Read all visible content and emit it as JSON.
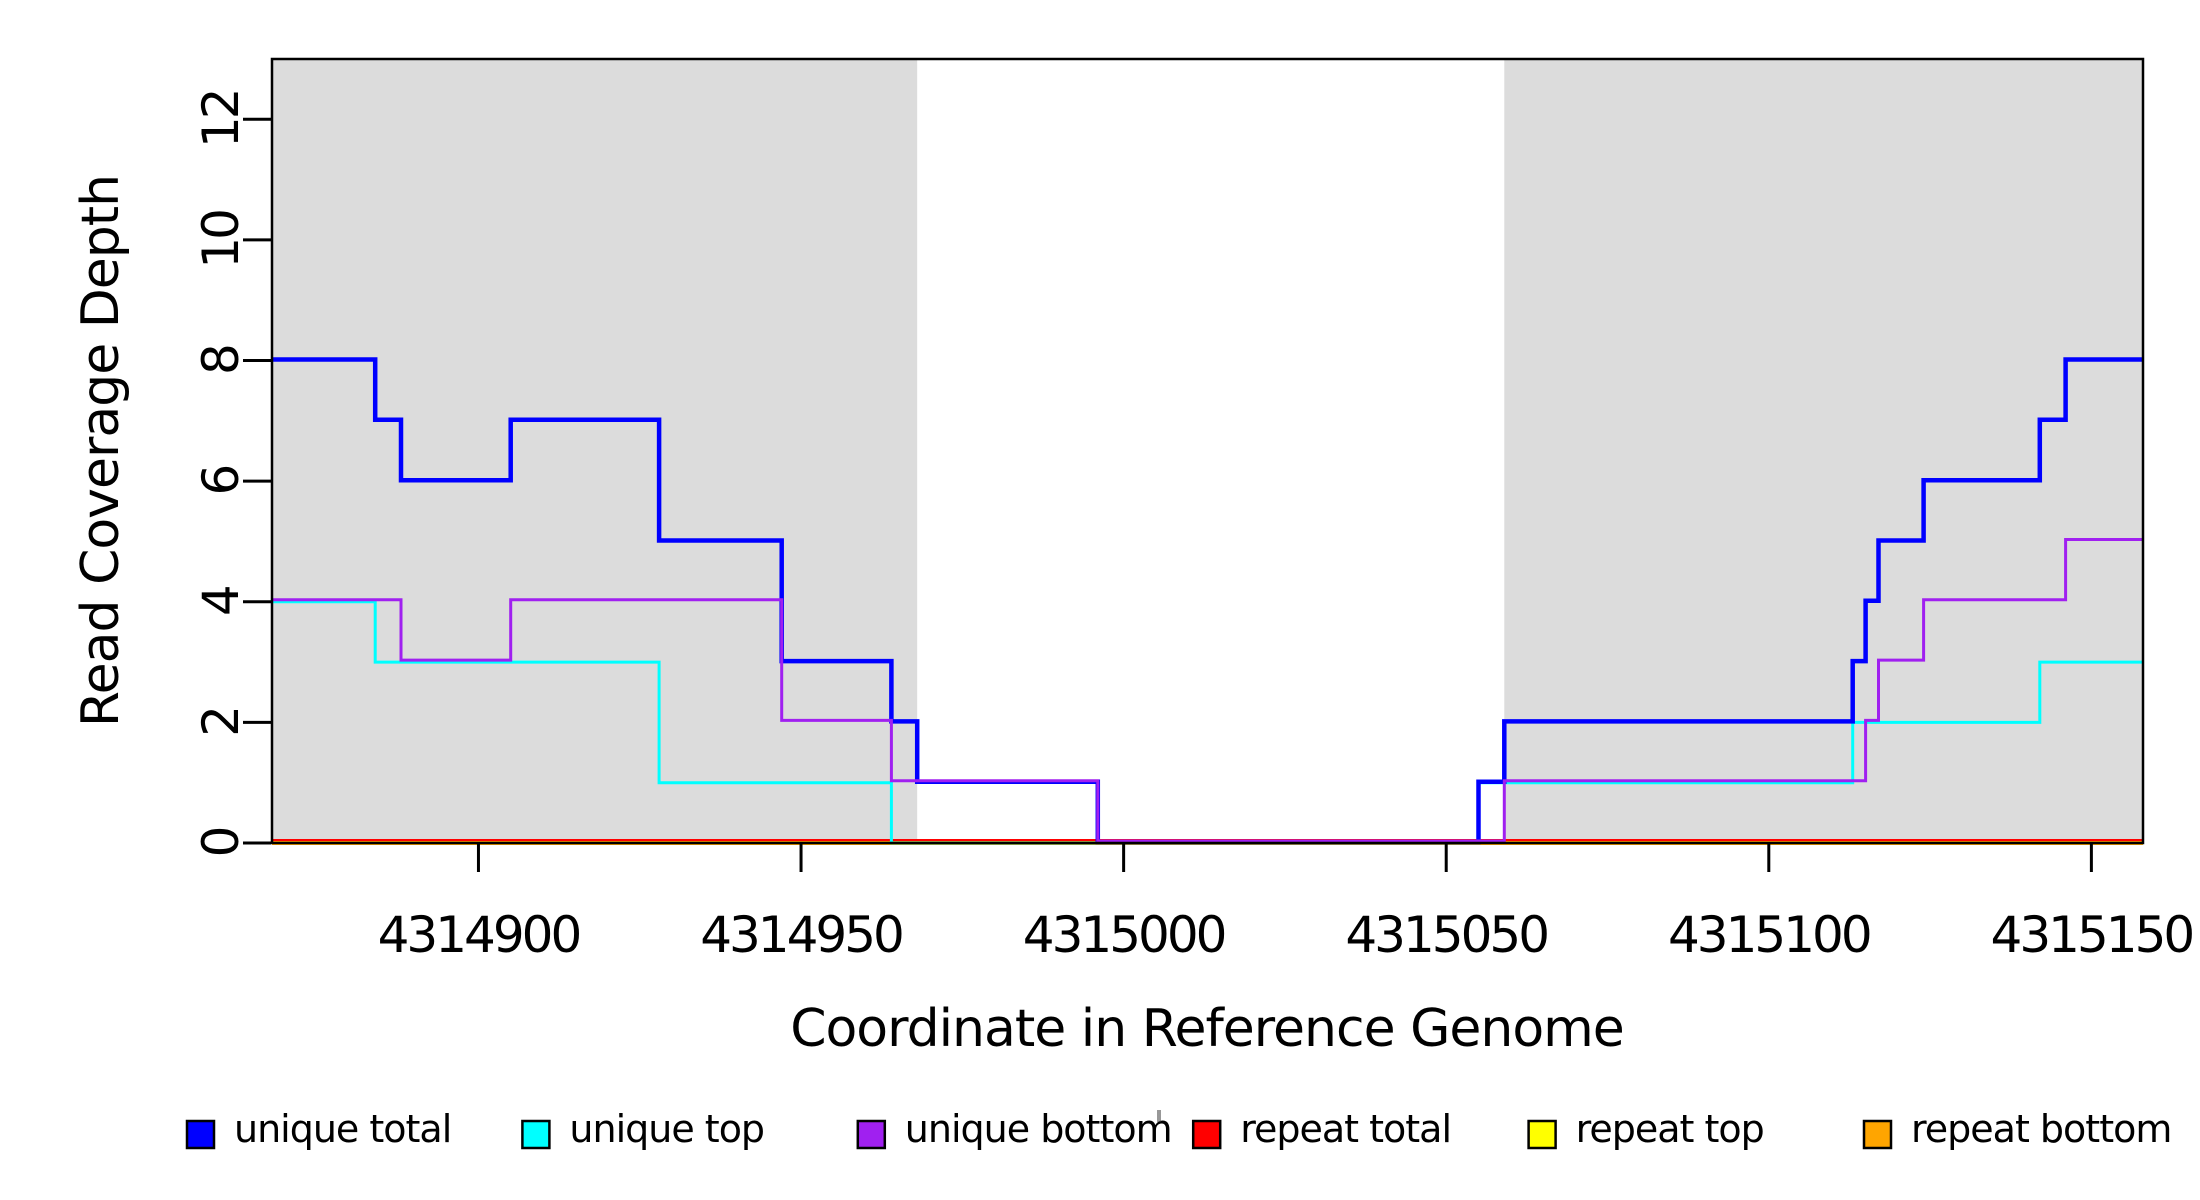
{
  "chart_data": {
    "type": "step",
    "title": "",
    "xlabel": "Coordinate in Reference Genome",
    "ylabel": "Read Coverage Depth",
    "xlim": [
      4314868,
      4315158
    ],
    "ylim": [
      0,
      13
    ],
    "x_ticks": [
      4314900,
      4314950,
      4315000,
      4315050,
      4315100,
      4315150
    ],
    "y_ticks": [
      0,
      2,
      4,
      6,
      8,
      10,
      12
    ],
    "grid": false,
    "legend_position": "bottom",
    "background_color": "#ffffff",
    "shaded_region_color": "#dcdcdc",
    "shaded_regions": [
      {
        "from": 4314868,
        "to": 4314968
      },
      {
        "from": 4315059,
        "to": 4315158
      }
    ],
    "series": [
      {
        "name": "unique total",
        "color": "#0000ff",
        "points": [
          [
            4314868,
            8
          ],
          [
            4314884,
            7
          ],
          [
            4314888,
            6
          ],
          [
            4314905,
            7
          ],
          [
            4314928,
            5
          ],
          [
            4314947,
            3
          ],
          [
            4314964,
            2
          ],
          [
            4314968,
            1
          ],
          [
            4314996,
            0
          ],
          [
            4315055,
            1
          ],
          [
            4315059,
            2
          ],
          [
            4315113,
            3
          ],
          [
            4315115,
            4
          ],
          [
            4315117,
            5
          ],
          [
            4315124,
            6
          ],
          [
            4315142,
            7
          ],
          [
            4315146,
            8
          ]
        ]
      },
      {
        "name": "unique top",
        "color": "#00ffff",
        "points": [
          [
            4314868,
            4
          ],
          [
            4314884,
            3
          ],
          [
            4314928,
            1
          ],
          [
            4314964,
            0
          ],
          [
            4315055,
            1
          ],
          [
            4315113,
            2
          ],
          [
            4315142,
            3
          ]
        ]
      },
      {
        "name": "unique bottom",
        "color": "#a020f0",
        "points": [
          [
            4314868,
            4
          ],
          [
            4314888,
            3
          ],
          [
            4314905,
            4
          ],
          [
            4314947,
            2
          ],
          [
            4314964,
            1
          ],
          [
            4314996,
            0
          ],
          [
            4315059,
            1
          ],
          [
            4315115,
            2
          ],
          [
            4315117,
            3
          ],
          [
            4315124,
            4
          ],
          [
            4315146,
            5
          ]
        ]
      },
      {
        "name": "repeat total",
        "color": "#ff0000",
        "points": [
          [
            4314868,
            0
          ]
        ]
      },
      {
        "name": "repeat top",
        "color": "#ffff00",
        "points": [
          [
            4314868,
            0
          ]
        ]
      },
      {
        "name": "repeat bottom",
        "color": "#ffa500",
        "points": [
          [
            4314868,
            0
          ]
        ]
      }
    ],
    "legend": [
      {
        "label": "unique total",
        "color": "#0000ff"
      },
      {
        "label": "unique top",
        "color": "#00ffff"
      },
      {
        "label": "unique bottom",
        "color": "#a020f0"
      },
      {
        "label": "repeat total",
        "color": "#ff0000"
      },
      {
        "label": "repeat top",
        "color": "#ffff00"
      },
      {
        "label": "repeat bottom",
        "color": "#ffa500"
      }
    ]
  }
}
